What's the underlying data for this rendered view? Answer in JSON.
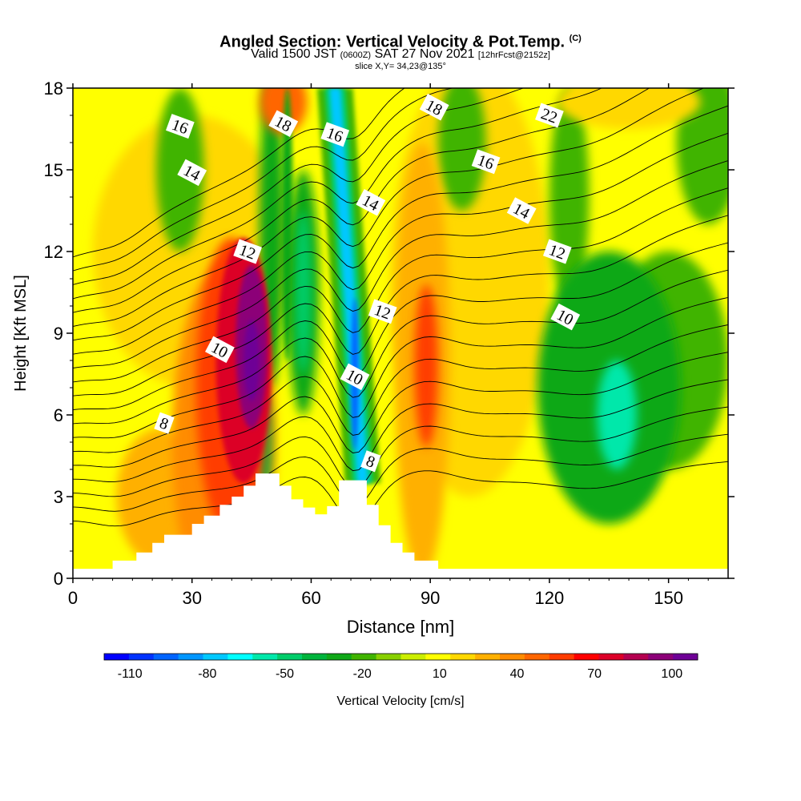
{
  "header": {
    "title_main": "Angled Section: Vertical Velocity & Pot.Temp.",
    "title_mark": "(C)",
    "valid_label": "Valid 1500 JST",
    "utc_time": "(0600Z)",
    "date_text": "SAT 27 Nov 2021",
    "forecast_info": "[12hrFcst@2152z]",
    "slice_info": "slice X,Y= 34,23@135°"
  },
  "chart_data": {
    "type": "heatmap",
    "xlabel": "Distance [nm]",
    "ylabel": "Height [Kft MSL]",
    "xlim": [
      0,
      165
    ],
    "ylim": [
      0,
      18
    ],
    "x_ticks": [
      0,
      30,
      60,
      90,
      120,
      150
    ],
    "y_ticks": [
      0,
      3,
      6,
      9,
      12,
      15,
      18
    ],
    "colorbar": {
      "label": "Vertical Velocity [cm/s]",
      "tick_labels": [
        "-110",
        "-80",
        "-50",
        "-20",
        "10",
        "40",
        "70",
        "100"
      ],
      "tick_values": [
        -110,
        -80,
        -50,
        -20,
        10,
        40,
        70,
        100
      ],
      "range": [
        -120,
        110
      ],
      "colors": [
        "#0000ff",
        "#0032ff",
        "#0064ff",
        "#0096ff",
        "#00c8ff",
        "#00ffff",
        "#00e8aa",
        "#00cd6a",
        "#00b43c",
        "#10a818",
        "#40b400",
        "#88d000",
        "#ccee00",
        "#ffff00",
        "#ffd800",
        "#ffb000",
        "#ff8c00",
        "#ff6600",
        "#ff3c00",
        "#ff0000",
        "#dc0028",
        "#b40050",
        "#8c0078",
        "#6e0096"
      ]
    },
    "isentrope_labels": [
      {
        "text": "16",
        "x": 27,
        "y": 16.6
      },
      {
        "text": "14",
        "x": 30,
        "y": 14.9
      },
      {
        "text": "12",
        "x": 44,
        "y": 12.0
      },
      {
        "text": "10",
        "x": 37,
        "y": 8.4
      },
      {
        "text": "8",
        "x": 23,
        "y": 5.7
      },
      {
        "text": "18",
        "x": 53,
        "y": 16.7
      },
      {
        "text": "16",
        "x": 66,
        "y": 16.3
      },
      {
        "text": "14",
        "x": 75,
        "y": 13.8
      },
      {
        "text": "12",
        "x": 78,
        "y": 9.8
      },
      {
        "text": "10",
        "x": 71,
        "y": 7.4
      },
      {
        "text": "8",
        "x": 75,
        "y": 4.3
      },
      {
        "text": "18",
        "x": 91,
        "y": 17.3
      },
      {
        "text": "16",
        "x": 104,
        "y": 15.3
      },
      {
        "text": "14",
        "x": 113,
        "y": 13.5
      },
      {
        "text": "12",
        "x": 122,
        "y": 12.0
      },
      {
        "text": "10",
        "x": 124,
        "y": 9.6
      },
      {
        "text": "22",
        "x": 120,
        "y": 17.0
      }
    ],
    "terrain_profile": [
      [
        0,
        0.35
      ],
      [
        10,
        0.35
      ],
      [
        10,
        0.65
      ],
      [
        16,
        0.65
      ],
      [
        16,
        0.95
      ],
      [
        20,
        0.95
      ],
      [
        20,
        1.3
      ],
      [
        23,
        1.3
      ],
      [
        23,
        1.6
      ],
      [
        30,
        1.6
      ],
      [
        30,
        2
      ],
      [
        33,
        2
      ],
      [
        33,
        2.3
      ],
      [
        37,
        2.3
      ],
      [
        37,
        2.7
      ],
      [
        40,
        2.7
      ],
      [
        40,
        3
      ],
      [
        43,
        3
      ],
      [
        43,
        3.4
      ],
      [
        46,
        3.4
      ],
      [
        46,
        3.85
      ],
      [
        52,
        3.85
      ],
      [
        52,
        3.4
      ],
      [
        55,
        3.4
      ],
      [
        55,
        2.9
      ],
      [
        58,
        2.9
      ],
      [
        58,
        2.6
      ],
      [
        61,
        2.6
      ],
      [
        61,
        2.35
      ],
      [
        64,
        2.35
      ],
      [
        64,
        2.65
      ],
      [
        67,
        2.65
      ],
      [
        67,
        3.6
      ],
      [
        74,
        3.6
      ],
      [
        74,
        2.7
      ],
      [
        77,
        2.7
      ],
      [
        77,
        1.95
      ],
      [
        80,
        1.95
      ],
      [
        80,
        1.3
      ],
      [
        83,
        1.3
      ],
      [
        83,
        0.95
      ],
      [
        86,
        0.95
      ],
      [
        86,
        0.65
      ],
      [
        92,
        0.65
      ],
      [
        92,
        0.35
      ],
      [
        165,
        0.35
      ]
    ],
    "velocity_cells": [
      {
        "x": 43,
        "y": 8.0,
        "rx": 7,
        "ry": 4.5,
        "v": 75
      },
      {
        "x": 45,
        "y": 8.5,
        "rx": 4,
        "ry": 3.0,
        "v": 95
      },
      {
        "x": 45,
        "y": 8.0,
        "rx": 2,
        "ry": 1.5,
        "v": 105
      },
      {
        "x": 40,
        "y": 7.0,
        "rx": 9,
        "ry": 5.5,
        "v": 55
      },
      {
        "x": 38,
        "y": 5.0,
        "rx": 13,
        "ry": 6.5,
        "v": 35
      },
      {
        "x": 22,
        "y": 3.0,
        "rx": 11,
        "ry": 2.5,
        "v": 28
      },
      {
        "x": 88,
        "y": 8.0,
        "rx": 7,
        "ry": 8,
        "v": 32
      },
      {
        "x": 89,
        "y": 7.8,
        "rx": 3,
        "ry": 3,
        "v": 55
      },
      {
        "x": 53,
        "y": 17.5,
        "rx": 6,
        "ry": 1.2,
        "v": 45
      },
      {
        "x": 140,
        "y": 17.5,
        "rx": 18,
        "ry": 1.0,
        "v": 20
      },
      {
        "x": 30,
        "y": 12,
        "rx": 25,
        "ry": 5,
        "v": 15
      },
      {
        "x": 100,
        "y": 11,
        "rx": 20,
        "ry": 8,
        "v": 15
      },
      {
        "x": 58,
        "y": 10.5,
        "rx": 4,
        "ry": 4.5,
        "v": -25
      },
      {
        "x": 58,
        "y": 10.5,
        "rx": 2,
        "ry": 3,
        "v": -45
      },
      {
        "x": 50,
        "y": 13,
        "rx": 3,
        "ry": 6,
        "v": -25
      },
      {
        "x": 48,
        "y": 5.0,
        "rx": 2,
        "ry": 2,
        "v": -35
      },
      {
        "x": 27,
        "y": 15,
        "rx": 6,
        "ry": 3,
        "v": -15
      },
      {
        "x": 98,
        "y": 16,
        "rx": 6,
        "ry": 2.5,
        "v": -15
      },
      {
        "x": 135,
        "y": 7,
        "rx": 18,
        "ry": 5,
        "v": -25
      },
      {
        "x": 137,
        "y": 6,
        "rx": 5,
        "ry": 2,
        "v": -55
      },
      {
        "x": 150,
        "y": 8,
        "rx": 15,
        "ry": 4,
        "v": -20
      },
      {
        "x": 160,
        "y": 16,
        "rx": 8,
        "ry": 3,
        "v": -15
      },
      {
        "x": 125,
        "y": 14,
        "rx": 5,
        "ry": 4,
        "v": -15
      }
    ],
    "downdraft_band": {
      "x_top": 66,
      "x_bottom": 73,
      "y_top": 18,
      "y_bottom": 3.5,
      "v_edge": -20,
      "v_mid": -50,
      "v_core": -75,
      "v_center": -100
    },
    "updraft_band": {
      "x_top": 66,
      "x_bottom": 73,
      "v": 10
    }
  }
}
